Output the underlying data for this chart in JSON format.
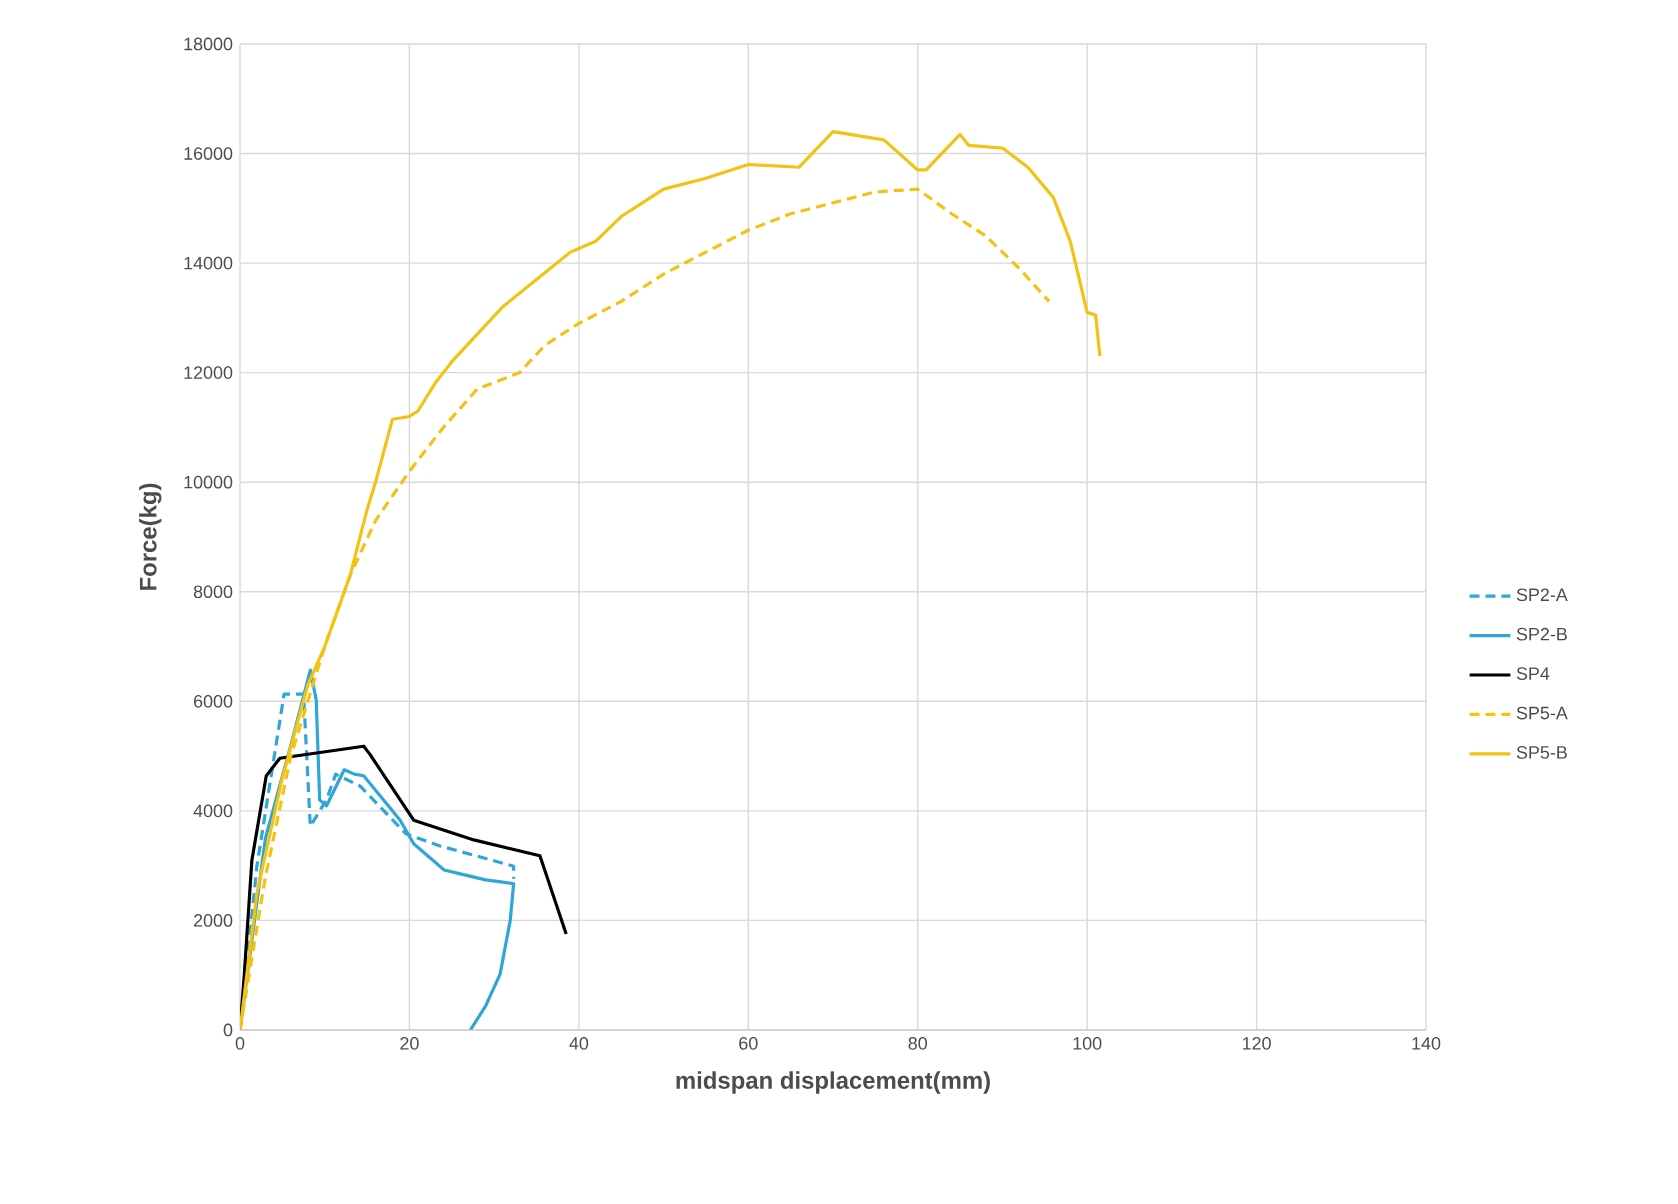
{
  "chart_data": {
    "type": "line",
    "xlabel": "midspan displacement(mm)",
    "ylabel": "Force(kg)",
    "xlim": [
      0,
      140
    ],
    "xticks": [
      0,
      20,
      40,
      60,
      80,
      100,
      120,
      140
    ],
    "ylim": [
      0,
      18000
    ],
    "yticks": [
      0,
      2000,
      4000,
      6000,
      8000,
      10000,
      12000,
      14000,
      16000,
      18000
    ],
    "grid": true,
    "legend": "right",
    "marker": "none",
    "series": [
      {
        "name": "SP2-A",
        "color": "#2ea6d8",
        "line_style": "dashed",
        "x": [
          0,
          2,
          5.2,
          7.5,
          8.3,
          10.2,
          11.3,
          14.2,
          19.6,
          23.6,
          32.3,
          32.3
        ],
        "values": [
          0,
          3000,
          6130,
          6130,
          3720,
          4200,
          4670,
          4450,
          3580,
          3360,
          2990,
          2760
        ]
      },
      {
        "name": "SP2-B",
        "color": "#2ea6d8",
        "line_style": "solid",
        "x": [
          0,
          3,
          6,
          8.3,
          9,
          9.4,
          10.2,
          12.3,
          13.5,
          14.6,
          18.9,
          20.5,
          24.1,
          26,
          29,
          32.3,
          31.9,
          30.7,
          29,
          27.2
        ],
        "values": [
          0,
          3500,
          5200,
          6570,
          6020,
          4200,
          4090,
          4750,
          4670,
          4640,
          3830,
          3400,
          2920,
          2850,
          2740,
          2670,
          2000,
          1020,
          440,
          0
        ]
      },
      {
        "name": "SP4",
        "color": "#000000",
        "line_style": "solid",
        "x": [
          0,
          0.5,
          1.4,
          3.1,
          4.7,
          14.6,
          15.3,
          20.5,
          27.6,
          35.4,
          38.5
        ],
        "values": [
          0,
          1000,
          3100,
          4640,
          4960,
          5180,
          5040,
          3830,
          3470,
          3180,
          1750
        ]
      },
      {
        "name": "SP5-A",
        "color": "#f2c314",
        "line_style": "dashed",
        "x": [
          0,
          3,
          6,
          10,
          13,
          16,
          20,
          24,
          28,
          33,
          36,
          40,
          45,
          50,
          55,
          60,
          65,
          70,
          75,
          80,
          84,
          88,
          92,
          95.5
        ],
        "values": [
          0,
          2800,
          5000,
          7000,
          8300,
          9300,
          10200,
          11000,
          11700,
          12000,
          12500,
          12900,
          13300,
          13800,
          14200,
          14600,
          14900,
          15100,
          15300,
          15350,
          14900,
          14500,
          13900,
          13300
        ]
      },
      {
        "name": "SP5-B",
        "color": "#f2c314",
        "line_style": "solid",
        "x": [
          0,
          2,
          5,
          8,
          10,
          13,
          15,
          16,
          18,
          20,
          21,
          23,
          25,
          28,
          31,
          35,
          39,
          42,
          45,
          50,
          55,
          60,
          66,
          70,
          76,
          80,
          81,
          85,
          86,
          90,
          93,
          96,
          98,
          100,
          101,
          101.5
        ],
        "values": [
          0,
          2500,
          4600,
          6300,
          7000,
          8300,
          9500,
          10000,
          11150,
          11200,
          11300,
          11800,
          12200,
          12700,
          13200,
          13700,
          14200,
          14400,
          14850,
          15350,
          15550,
          15800,
          15750,
          16400,
          16250,
          15700,
          15700,
          16350,
          16150,
          16100,
          15750,
          15200,
          14400,
          13100,
          13050,
          12300
        ]
      }
    ]
  }
}
